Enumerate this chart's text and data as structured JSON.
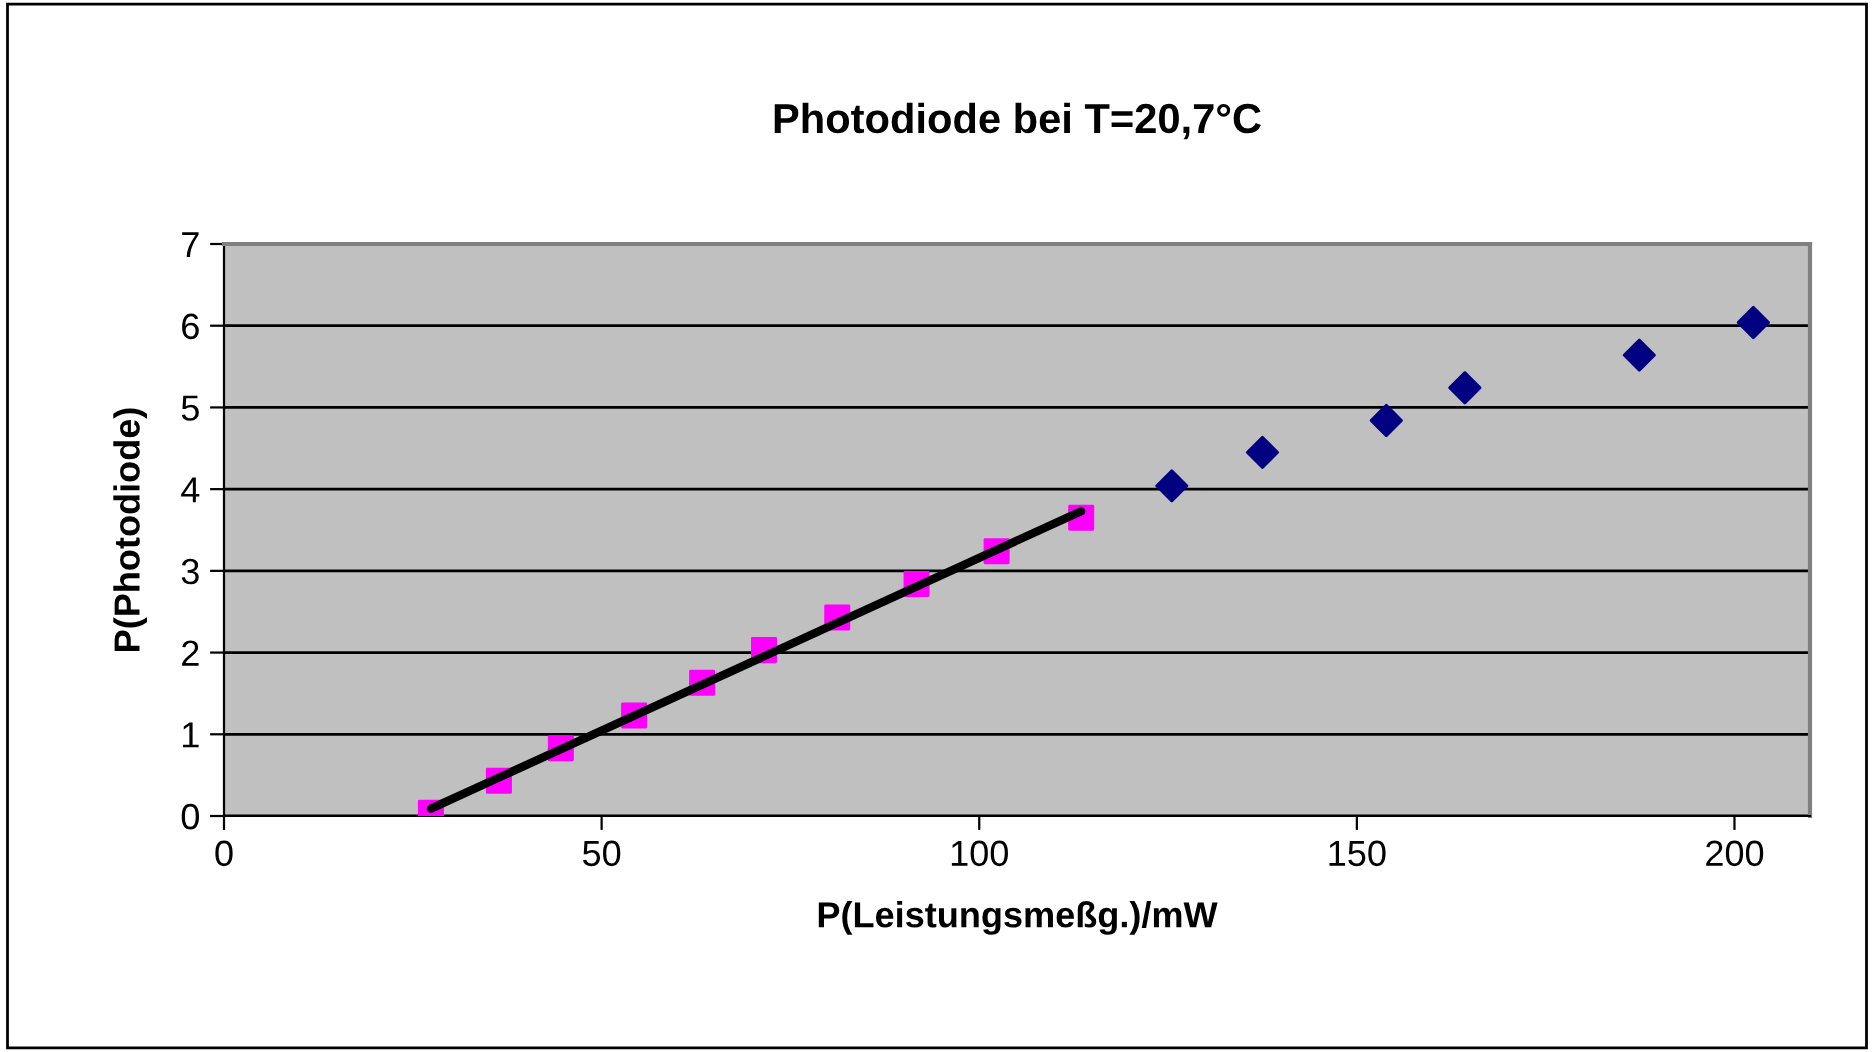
{
  "chart_data": {
    "type": "scatter",
    "title": "Photodiode bei T=20,7°C",
    "xlabel": "P(Leistungsmeßg.)/mW",
    "ylabel": "P(Photodiode)",
    "xlim": [
      0,
      210
    ],
    "xticks": [
      0,
      50,
      100,
      150,
      200
    ],
    "ylim": [
      0,
      7
    ],
    "yticks": [
      0,
      1,
      2,
      3,
      4,
      5,
      6,
      7
    ],
    "grid": "y",
    "legend": false,
    "series": [
      {
        "marker": "square",
        "color": "#ff00ff",
        "x": [
          27.4,
          36.4,
          44.6,
          54.3,
          63.3,
          71.5,
          81.2,
          91.7,
          102.3,
          113.5
        ],
        "values": [
          0.04,
          0.43,
          0.83,
          1.23,
          1.63,
          2.03,
          2.43,
          2.84,
          3.24,
          3.65
        ]
      },
      {
        "marker": "diamond",
        "color": "#000080",
        "x": [
          125.5,
          137.5,
          153.9,
          164.3,
          187.4,
          202.5
        ],
        "values": [
          4.04,
          4.45,
          4.84,
          5.24,
          5.64,
          6.04
        ]
      },
      {
        "type": "line",
        "marker": "none",
        "color": "#000000",
        "x": [
          27.4,
          113.5
        ],
        "values": [
          0.09,
          3.73
        ]
      }
    ]
  }
}
